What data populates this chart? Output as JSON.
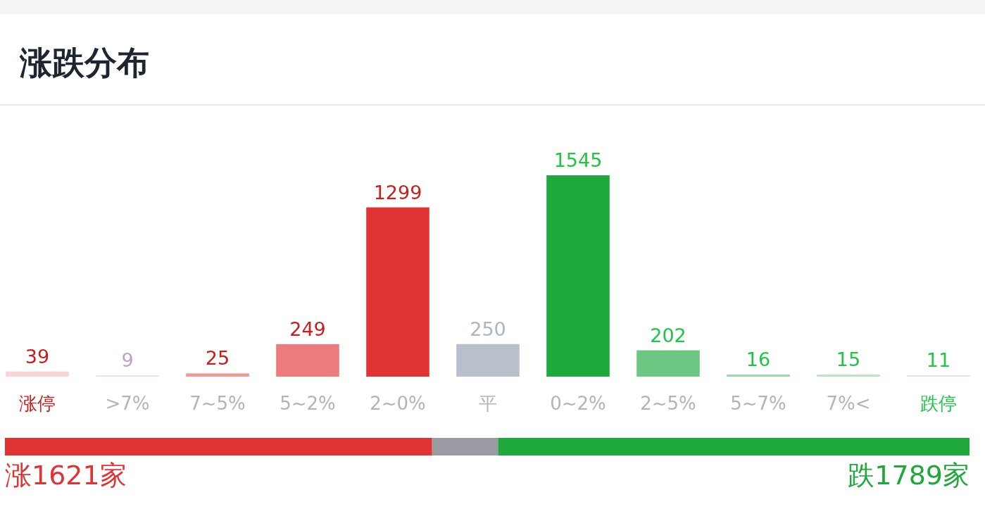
{
  "chart_data": [
    {
      "type": "bar",
      "title": "涨跌分布",
      "categories": [
        "涨停",
        ">7%",
        "7~5%",
        "5~2%",
        "2~0%",
        "平",
        "0~2%",
        "2~5%",
        "5~7%",
        "7%<",
        "跌停"
      ],
      "values": [
        39,
        9,
        25,
        249,
        1299,
        250,
        1545,
        202,
        16,
        15,
        11
      ],
      "colors": [
        "#f9d4d4",
        "#e4dcec",
        "#ef9a9a",
        "#ee7b7b",
        "#e03434",
        "#b9c0cc",
        "#1fa83c",
        "#6cc783",
        "#9ad8a8",
        "#b5e3c0",
        "#d4eedb"
      ],
      "data_labels": true
    },
    {
      "type": "bar",
      "orientation": "horizontal",
      "stacked": true,
      "categories": [
        null
      ],
      "series": [
        {
          "color": "#e03434",
          "values": [
            1621
          ],
          "value_labels": [
            "涨1621家"
          ]
        },
        {
          "color": "#9a9aa2",
          "values": [
            250
          ],
          "value_labels": [
            null
          ]
        },
        {
          "color": "#1fa83c",
          "values": [
            1789
          ],
          "value_labels": [
            "跌1789家"
          ]
        }
      ]
    }
  ]
}
